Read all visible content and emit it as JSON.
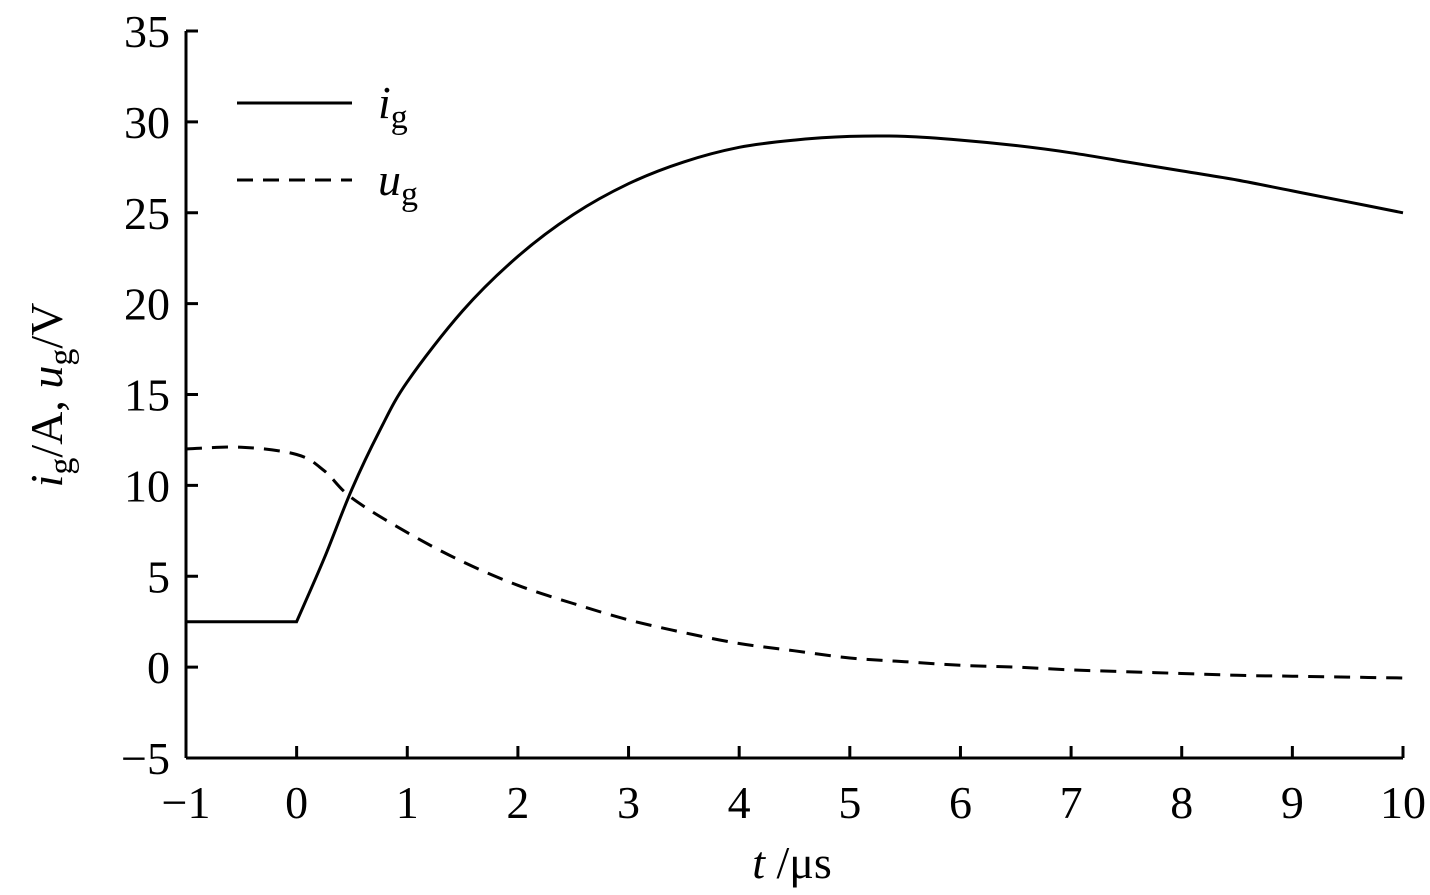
{
  "chart_data": {
    "type": "line",
    "xlabel": {
      "var": "t",
      "unit": " /μs"
    },
    "ylabel": {
      "v1": "i",
      "s1": "g",
      "u1": "/A, ",
      "v2": "u",
      "s2": "g",
      "u2": "/V"
    },
    "xlim": [
      -1,
      10
    ],
    "ylim": [
      -5,
      35
    ],
    "xticks": [
      -1,
      0,
      1,
      2,
      3,
      4,
      5,
      6,
      7,
      8,
      9,
      10
    ],
    "yticks": [
      -5,
      0,
      5,
      10,
      15,
      20,
      25,
      30,
      35
    ],
    "xtick_labels": [
      "−1",
      "0",
      "1",
      "2",
      "3",
      "4",
      "5",
      "6",
      "7",
      "8",
      "9",
      "10"
    ],
    "ytick_labels": [
      "−5",
      "0",
      "5",
      "10",
      "15",
      "20",
      "25",
      "30",
      "35"
    ],
    "legend_position": "top-left",
    "grid": false,
    "series": [
      {
        "var": "i",
        "sub": "g",
        "style": "solid",
        "color": "#000000",
        "x": [
          -1,
          0,
          0.25,
          0.5,
          0.75,
          1,
          1.5,
          2,
          2.5,
          3,
          3.5,
          4,
          4.5,
          5,
          5.5,
          6,
          6.5,
          7,
          7.5,
          8,
          8.5,
          9,
          9.5,
          10
        ],
        "y": [
          2.5,
          2.5,
          6.0,
          9.8,
          13.0,
          15.7,
          19.6,
          22.6,
          24.9,
          26.6,
          27.8,
          28.6,
          29.0,
          29.2,
          29.2,
          29.0,
          28.7,
          28.3,
          27.8,
          27.3,
          26.8,
          26.2,
          25.6,
          25.0
        ]
      },
      {
        "var": "u",
        "sub": "g",
        "style": "dashed",
        "color": "#000000",
        "x": [
          -1,
          -0.5,
          0,
          0.25,
          0.5,
          1,
          1.5,
          2,
          2.5,
          3,
          3.5,
          4,
          4.5,
          5,
          5.5,
          6,
          6.5,
          7,
          7.5,
          8,
          8.5,
          9,
          9.5,
          10
        ],
        "y": [
          12.0,
          12.1,
          11.7,
          10.8,
          9.3,
          7.4,
          5.8,
          4.5,
          3.5,
          2.6,
          1.9,
          1.3,
          0.9,
          0.5,
          0.3,
          0.1,
          0.0,
          -0.15,
          -0.25,
          -0.35,
          -0.45,
          -0.5,
          -0.55,
          -0.6
        ]
      }
    ]
  }
}
